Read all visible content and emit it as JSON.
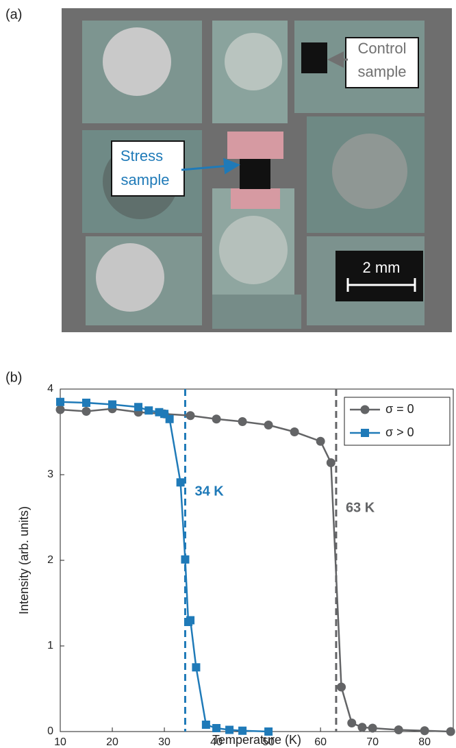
{
  "photo": {
    "panel_label": "(a)",
    "control_label": [
      "Control",
      "sample"
    ],
    "stress_label": [
      "Stress",
      "sample"
    ],
    "scale_bar": "2 mm"
  },
  "chart_data": {
    "type": "line",
    "panel_label": "(b)",
    "xlabel": "Temperature (K)",
    "ylabel": "Intensity (arb. units)",
    "xlim": [
      10,
      85.5
    ],
    "xticks": [
      10,
      20,
      30,
      40,
      50,
      60,
      70,
      80
    ],
    "ylim": [
      0,
      4
    ],
    "yticks": [
      0,
      1,
      2,
      3,
      4
    ],
    "grid": false,
    "legend": "upper right",
    "series": [
      {
        "name": "σ = 0",
        "color": "#636466",
        "marker": "circle",
        "x": [
          10,
          15,
          20,
          25,
          30,
          35,
          40,
          45,
          50,
          55,
          60,
          62,
          64,
          66,
          68,
          70,
          75,
          80,
          85
        ],
        "values": [
          3.76,
          3.74,
          3.77,
          3.73,
          3.71,
          3.69,
          3.65,
          3.62,
          3.58,
          3.5,
          3.39,
          3.14,
          0.52,
          0.1,
          0.05,
          0.04,
          0.02,
          0.01,
          0.0
        ]
      },
      {
        "name": "σ > 0",
        "color": "#1f7ab8",
        "marker": "square",
        "x": [
          10,
          15,
          20,
          25,
          27,
          29,
          30,
          31,
          33.1,
          34,
          34.6,
          35,
          36.1,
          38,
          40,
          42.5,
          45,
          50
        ],
        "values": [
          3.85,
          3.84,
          3.82,
          3.79,
          3.75,
          3.73,
          3.71,
          3.65,
          2.91,
          2.01,
          1.28,
          1.3,
          0.75,
          0.08,
          0.04,
          0.02,
          0.01,
          0.0
        ]
      }
    ],
    "annotations": [
      {
        "text": "34 K",
        "x": 34,
        "color": "#1f7ab8"
      },
      {
        "text": "63 K",
        "x": 63,
        "color": "#636466"
      }
    ]
  }
}
